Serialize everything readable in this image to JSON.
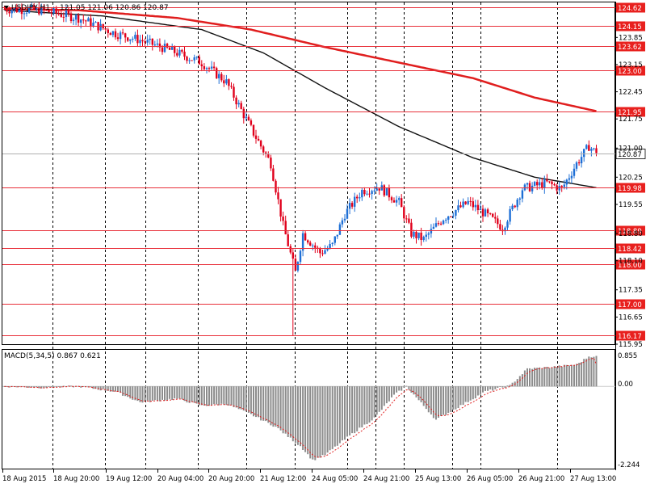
{
  "header": {
    "symbol_label": "USDJPY,H1",
    "ohlc_text": "121.05 121.06 120.86 120.87"
  },
  "macd": {
    "label": "MACD(5,34,5) 0.867 0.621",
    "scale_top": "0.855",
    "scale_zero": "0.00",
    "scale_bottom": "-2.244"
  },
  "price_axis": {
    "ticks": [
      "123.85",
      "123.15",
      "122.45",
      "121.75",
      "121.00",
      "120.25",
      "119.55",
      "118.80",
      "118.10",
      "117.35",
      "116.65",
      "115.95"
    ]
  },
  "price_levels": [
    {
      "value": 124.62,
      "label": "124.62",
      "pinned": false
    },
    {
      "value": 124.15,
      "label": "124.15",
      "pinned": false
    },
    {
      "value": 123.62,
      "label": "123.62",
      "pinned": false
    },
    {
      "value": 123.0,
      "label": "123.00",
      "pinned": false
    },
    {
      "value": 121.95,
      "label": "121.95",
      "pinned": false
    },
    {
      "value": 119.98,
      "label": "119.98",
      "pinned": false
    },
    {
      "value": 118.89,
      "label": "118.89",
      "pinned": false
    },
    {
      "value": 118.42,
      "label": "118.42",
      "pinned": false
    },
    {
      "value": 118.0,
      "label": "118.00",
      "pinned": false
    },
    {
      "value": 117.0,
      "label": "117.00",
      "pinned": false
    },
    {
      "value": 116.17,
      "label": "116.17",
      "pinned": false
    }
  ],
  "current_price": {
    "value": 120.87,
    "label": "120.87"
  },
  "time_axis": {
    "labels": [
      "18 Aug 2015",
      "18 Aug 20:00",
      "19 Aug 12:00",
      "20 Aug 04:00",
      "20 Aug 20:00",
      "21 Aug 12:00",
      "24 Aug 05:00",
      "24 Aug 21:00",
      "25 Aug 13:00",
      "26 Aug 05:00",
      "26 Aug 21:00",
      "27 Aug 13:00"
    ]
  },
  "colors": {
    "background": "#ffffff",
    "bull_candle": "#1e6fd6",
    "bear_candle": "#e0001b",
    "level_line": "#e8303a",
    "level_label_bg": "#e8201e",
    "ma_slow": "#e01e1e",
    "ma_fast": "#111111",
    "macd_hist": "#8c8c8c",
    "macd_signal": "#e01e1e",
    "grid": "#000000"
  },
  "chart_data": {
    "type": "candlestick",
    "symbol": "USDJPY",
    "timeframe": "H1",
    "ylim": [
      115.95,
      124.75
    ],
    "anchors": [
      {
        "bar": 0,
        "price": 124.58
      },
      {
        "bar": 15,
        "price": 124.55
      },
      {
        "bar": 30,
        "price": 124.35
      },
      {
        "bar": 45,
        "price": 123.95
      },
      {
        "bar": 55,
        "price": 123.78
      },
      {
        "bar": 68,
        "price": 123.5
      },
      {
        "bar": 80,
        "price": 123.2
      },
      {
        "bar": 90,
        "price": 122.7
      },
      {
        "bar": 100,
        "price": 121.5
      },
      {
        "bar": 108,
        "price": 120.6
      },
      {
        "bar": 113,
        "price": 119.0
      },
      {
        "bar": 118,
        "price": 117.8
      },
      {
        "bar": 121,
        "price": 118.8
      },
      {
        "bar": 128,
        "price": 118.3
      },
      {
        "bar": 133,
        "price": 118.5
      },
      {
        "bar": 138,
        "price": 119.3
      },
      {
        "bar": 145,
        "price": 119.9
      },
      {
        "bar": 152,
        "price": 120.0
      },
      {
        "bar": 160,
        "price": 119.6
      },
      {
        "bar": 165,
        "price": 118.8
      },
      {
        "bar": 170,
        "price": 118.65
      },
      {
        "bar": 178,
        "price": 119.2
      },
      {
        "bar": 188,
        "price": 119.6
      },
      {
        "bar": 195,
        "price": 119.3
      },
      {
        "bar": 202,
        "price": 118.95
      },
      {
        "bar": 210,
        "price": 119.95
      },
      {
        "bar": 220,
        "price": 120.1
      },
      {
        "bar": 226,
        "price": 119.95
      },
      {
        "bar": 232,
        "price": 120.6
      },
      {
        "bar": 237,
        "price": 121.05
      },
      {
        "bar": 240,
        "price": 120.87
      }
    ],
    "ma_slow": [
      {
        "bar": 0,
        "price": 124.58
      },
      {
        "bar": 30,
        "price": 124.55
      },
      {
        "bar": 70,
        "price": 124.35
      },
      {
        "bar": 100,
        "price": 124.05
      },
      {
        "bar": 130,
        "price": 123.6
      },
      {
        "bar": 160,
        "price": 123.2
      },
      {
        "bar": 190,
        "price": 122.8
      },
      {
        "bar": 215,
        "price": 122.3
      },
      {
        "bar": 240,
        "price": 121.95
      }
    ],
    "ma_fast": [
      {
        "bar": 0,
        "price": 124.55
      },
      {
        "bar": 40,
        "price": 124.4
      },
      {
        "bar": 80,
        "price": 124.05
      },
      {
        "bar": 105,
        "price": 123.45
      },
      {
        "bar": 130,
        "price": 122.55
      },
      {
        "bar": 160,
        "price": 121.55
      },
      {
        "bar": 190,
        "price": 120.75
      },
      {
        "bar": 215,
        "price": 120.25
      },
      {
        "bar": 240,
        "price": 119.98
      }
    ],
    "macd_range": [
      -2.244,
      0.855
    ],
    "macd_anchors": [
      {
        "bar": 0,
        "value": 0.0
      },
      {
        "bar": 15,
        "value": -0.03
      },
      {
        "bar": 30,
        "value": 0.0
      },
      {
        "bar": 45,
        "value": -0.15
      },
      {
        "bar": 55,
        "value": -0.45
      },
      {
        "bar": 70,
        "value": -0.35
      },
      {
        "bar": 80,
        "value": -0.55
      },
      {
        "bar": 90,
        "value": -0.5
      },
      {
        "bar": 100,
        "value": -0.8
      },
      {
        "bar": 110,
        "value": -1.15
      },
      {
        "bar": 120,
        "value": -1.7
      },
      {
        "bar": 125,
        "value": -2.1
      },
      {
        "bar": 130,
        "value": -1.95
      },
      {
        "bar": 140,
        "value": -1.4
      },
      {
        "bar": 150,
        "value": -0.9
      },
      {
        "bar": 158,
        "value": -0.25
      },
      {
        "bar": 163,
        "value": 0.0
      },
      {
        "bar": 175,
        "value": -0.95
      },
      {
        "bar": 185,
        "value": -0.55
      },
      {
        "bar": 195,
        "value": -0.15
      },
      {
        "bar": 205,
        "value": 0.02
      },
      {
        "bar": 212,
        "value": 0.5
      },
      {
        "bar": 222,
        "value": 0.55
      },
      {
        "bar": 232,
        "value": 0.62
      },
      {
        "bar": 237,
        "value": 0.85
      },
      {
        "bar": 240,
        "value": 0.867
      }
    ],
    "macd_signal_value": 0.621
  }
}
